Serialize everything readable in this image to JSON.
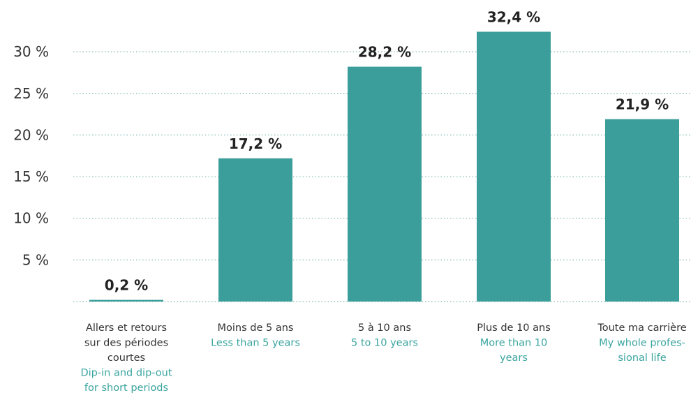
{
  "chart_data": {
    "type": "bar",
    "categories": [
      {
        "fr": [
          "Allers et retours",
          "sur des périodes",
          "courtes"
        ],
        "en": [
          "Dip-in and dip-out",
          "for short periods"
        ]
      },
      {
        "fr": [
          "Moins de 5 ans"
        ],
        "en": [
          "Less than 5 years"
        ]
      },
      {
        "fr": [
          "5 à 10 ans"
        ],
        "en": [
          "5 to 10 years"
        ]
      },
      {
        "fr": [
          "Plus de 10 ans"
        ],
        "en": [
          "More than 10",
          "years"
        ]
      },
      {
        "fr": [
          "Toute ma carrière"
        ],
        "en": [
          "My whole profes-",
          "sional life"
        ]
      }
    ],
    "values": [
      0.2,
      17.2,
      28.2,
      32.4,
      21.9
    ],
    "value_labels": [
      "0,2 %",
      "17,2 %",
      "28,2 %",
      "32,4 %",
      "21,9 %"
    ],
    "yticks": [
      5,
      10,
      15,
      20,
      25,
      30
    ],
    "ytick_labels": [
      "5 %",
      "10 %",
      "15 %",
      "20 %",
      "25 %",
      "30 %"
    ],
    "ylim": [
      0,
      32.4
    ],
    "grid": true,
    "colors": {
      "bar": "#3b9e9a",
      "french_label": "#333333",
      "english_label": "#3aa59f",
      "grid": "#7fb8b2"
    }
  }
}
